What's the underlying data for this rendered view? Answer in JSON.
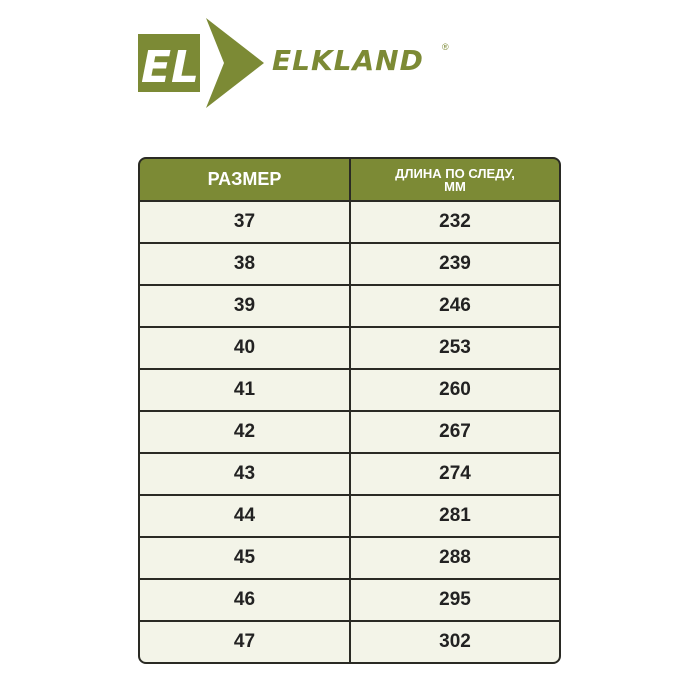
{
  "brand": {
    "name": "ELKLAND",
    "registered": "®",
    "color": "#7c8a35"
  },
  "table": {
    "headers": [
      "РАЗМЕР",
      "ДЛИНА ПО СЛЕДУ,",
      "ММ"
    ],
    "rows": [
      [
        "37",
        "232"
      ],
      [
        "38",
        "239"
      ],
      [
        "39",
        "246"
      ],
      [
        "40",
        "253"
      ],
      [
        "41",
        "260"
      ],
      [
        "42",
        "267"
      ],
      [
        "43",
        "274"
      ],
      [
        "44",
        "281"
      ],
      [
        "45",
        "288"
      ],
      [
        "46",
        "295"
      ],
      [
        "47",
        "302"
      ]
    ]
  }
}
